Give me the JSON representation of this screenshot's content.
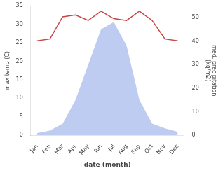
{
  "chart_data": {
    "type": "line",
    "categories": [
      "Jan",
      "Feb",
      "Mar",
      "Apr",
      "May",
      "Jun",
      "Jul",
      "Aug",
      "Sep",
      "Oct",
      "Nov",
      "Dec"
    ],
    "series": [
      {
        "type": "line",
        "color": "#cc4444",
        "values": [
          25.5,
          26.0,
          32.0,
          32.5,
          31.0,
          33.5,
          31.5,
          31.0,
          33.5,
          31.0,
          26.0,
          25.5
        ]
      },
      {
        "type": "area",
        "color": "#aabbee",
        "axis": "y2",
        "values": [
          1.0,
          2.0,
          5.0,
          15.0,
          30.0,
          45.0,
          48.0,
          38.0,
          15.0,
          5.0,
          3.0,
          1.5
        ]
      }
    ],
    "xlabel": "date (month)",
    "ylabel": "max temp (C)",
    "y2label": "med. precipitation\n(kg/m2)",
    "ylim": [
      0,
      35
    ],
    "yticks": [
      0,
      5,
      10,
      15,
      20,
      25,
      30,
      35
    ],
    "y2lim": [
      0,
      55
    ],
    "y2ticks": [
      0,
      10,
      20,
      30,
      40,
      50
    ],
    "grid": false
  }
}
